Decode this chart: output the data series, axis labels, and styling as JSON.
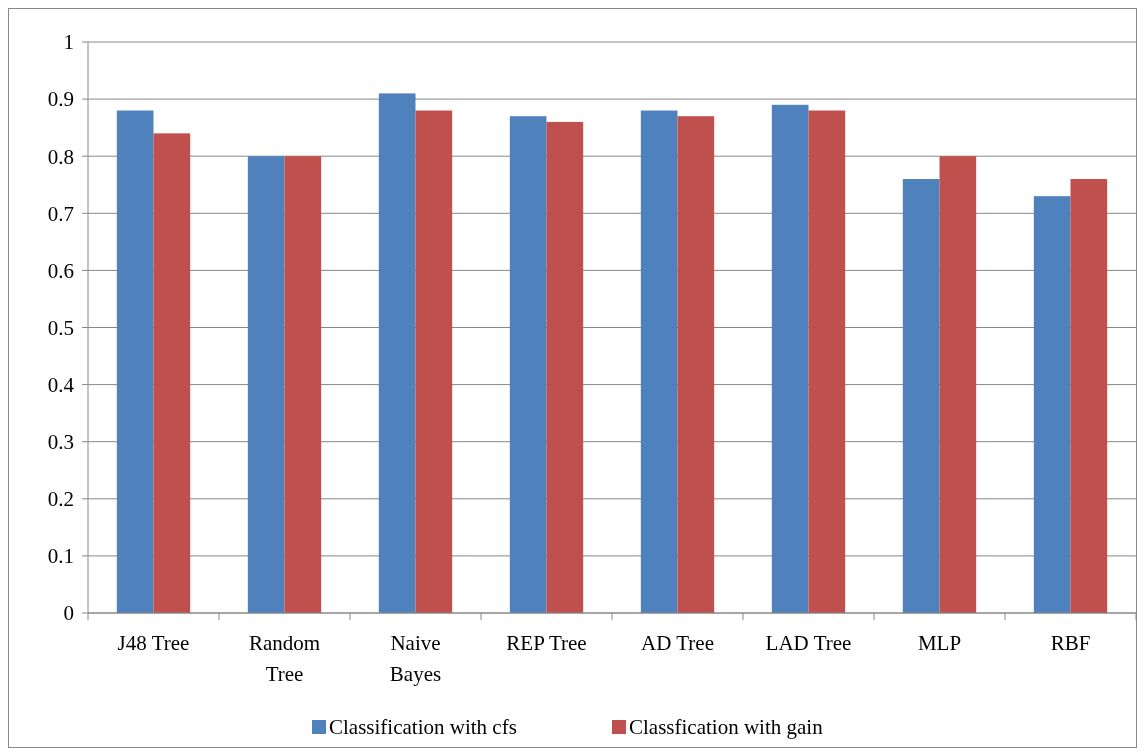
{
  "chart_data": {
    "type": "bar",
    "categories": [
      "J48 Tree",
      "Random Tree",
      "Naive Bayes",
      "REP Tree",
      "AD Tree",
      "LAD Tree",
      "MLP",
      "RBF"
    ],
    "series": [
      {
        "name": "Classification with cfs",
        "color": "#4f81bd",
        "values": [
          0.88,
          0.8,
          0.91,
          0.87,
          0.88,
          0.89,
          0.76,
          0.73
        ]
      },
      {
        "name": "Classfication with gain",
        "color": "#c0504d",
        "values": [
          0.84,
          0.8,
          0.88,
          0.86,
          0.87,
          0.88,
          0.8,
          0.76
        ]
      }
    ],
    "ylim": [
      0,
      1
    ],
    "yticks": [
      0,
      0.1,
      0.2,
      0.3,
      0.4,
      0.5,
      0.6,
      0.7,
      0.8,
      0.9,
      1
    ],
    "grid": "y",
    "legend": "bottom"
  }
}
